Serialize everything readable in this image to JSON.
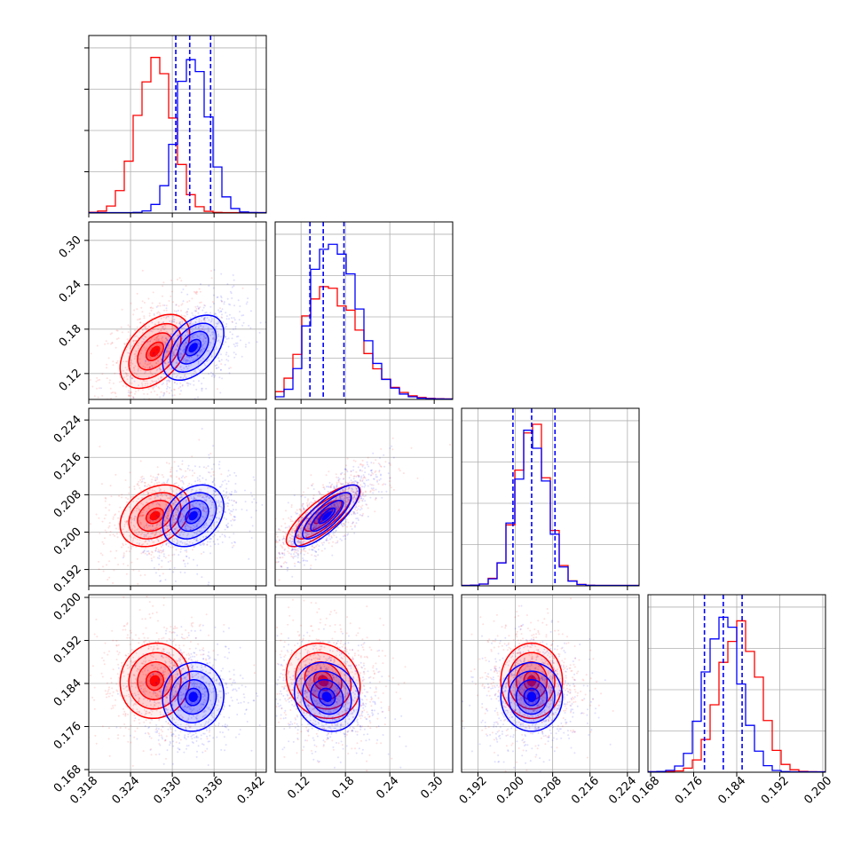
{
  "chart_data": {
    "type": "corner",
    "grid": true,
    "parameters": [
      {
        "ticks": [
          "0.318",
          "0.324",
          "0.330",
          "0.336",
          "0.342"
        ],
        "tick_values": [
          0.318,
          0.324,
          0.33,
          0.336,
          0.342
        ],
        "range": [
          0.318,
          0.3435
        ]
      },
      {
        "ticks": [
          "0.12",
          "0.18",
          "0.24",
          "0.30"
        ],
        "tick_values": [
          0.12,
          0.18,
          0.24,
          0.3
        ],
        "range": [
          0.085,
          0.325
        ]
      },
      {
        "ticks": [
          "0.192",
          "0.200",
          "0.208",
          "0.216",
          "0.224"
        ],
        "tick_values": [
          0.192,
          0.2,
          0.208,
          0.216,
          0.224
        ],
        "range": [
          0.1885,
          0.2265
        ]
      },
      {
        "ticks": [
          "0.168",
          "0.176",
          "0.184",
          "0.192",
          "0.200"
        ],
        "tick_values": [
          0.168,
          0.176,
          0.184,
          0.192,
          0.2
        ],
        "range": [
          0.1675,
          0.2005
        ]
      }
    ],
    "series": [
      {
        "color": "#ff0000",
        "means": [
          0.3275,
          0.15,
          0.2035,
          0.1845
        ],
        "sigmas": [
          0.0025,
          0.025,
          0.0033,
          0.0035
        ],
        "hist_peak": [
          0.95,
          0.72,
          1.0,
          0.93
        ],
        "correlations": {
          "0-1": 0.45,
          "0-2": 0.3,
          "0-3": 0.05,
          "1-2": 0.8,
          "1-3": -0.15,
          "2-3": 0.0
        }
      },
      {
        "color": "#0000ff",
        "means": [
          0.333,
          0.155,
          0.2035,
          0.1815
        ],
        "sigmas": [
          0.0022,
          0.022,
          0.0033,
          0.0032
        ],
        "hist_peak": [
          1.0,
          1.0,
          0.95,
          1.0
        ],
        "quantiles": [
          [
            0.3305,
            0.3325,
            0.3355
          ],
          [
            0.132,
            0.15,
            0.178
          ],
          [
            0.1995,
            0.2035,
            0.2085
          ],
          [
            0.178,
            0.1815,
            0.185
          ]
        ],
        "correlations": {
          "0-1": 0.45,
          "0-2": 0.3,
          "0-3": 0.05,
          "1-2": 0.8,
          "1-3": -0.15,
          "2-3": 0.0
        }
      }
    ]
  }
}
